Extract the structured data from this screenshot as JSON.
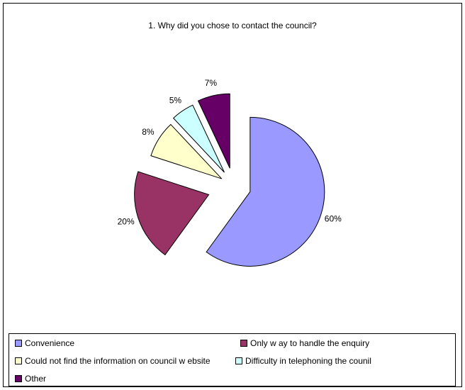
{
  "chart_data": {
    "type": "pie",
    "title": "1. Why did you chose to contact the council?",
    "slices": [
      {
        "name": "Convenience",
        "value": 60,
        "label": "60%",
        "color": "#9999FF"
      },
      {
        "name": "Only w ay to handle the enquiry",
        "value": 20,
        "label": "20%",
        "color": "#993366"
      },
      {
        "name": "Could not find the information on council w ebsite",
        "value": 8,
        "label": "8%",
        "color": "#FFFFCC"
      },
      {
        "name": "Difficulty in telephoning the counil",
        "value": 5,
        "label": "5%",
        "color": "#CCFFFF"
      },
      {
        "name": "Other",
        "value": 7,
        "label": "7%",
        "color": "#660066"
      }
    ],
    "exploded": true,
    "legend_position": "bottom"
  }
}
